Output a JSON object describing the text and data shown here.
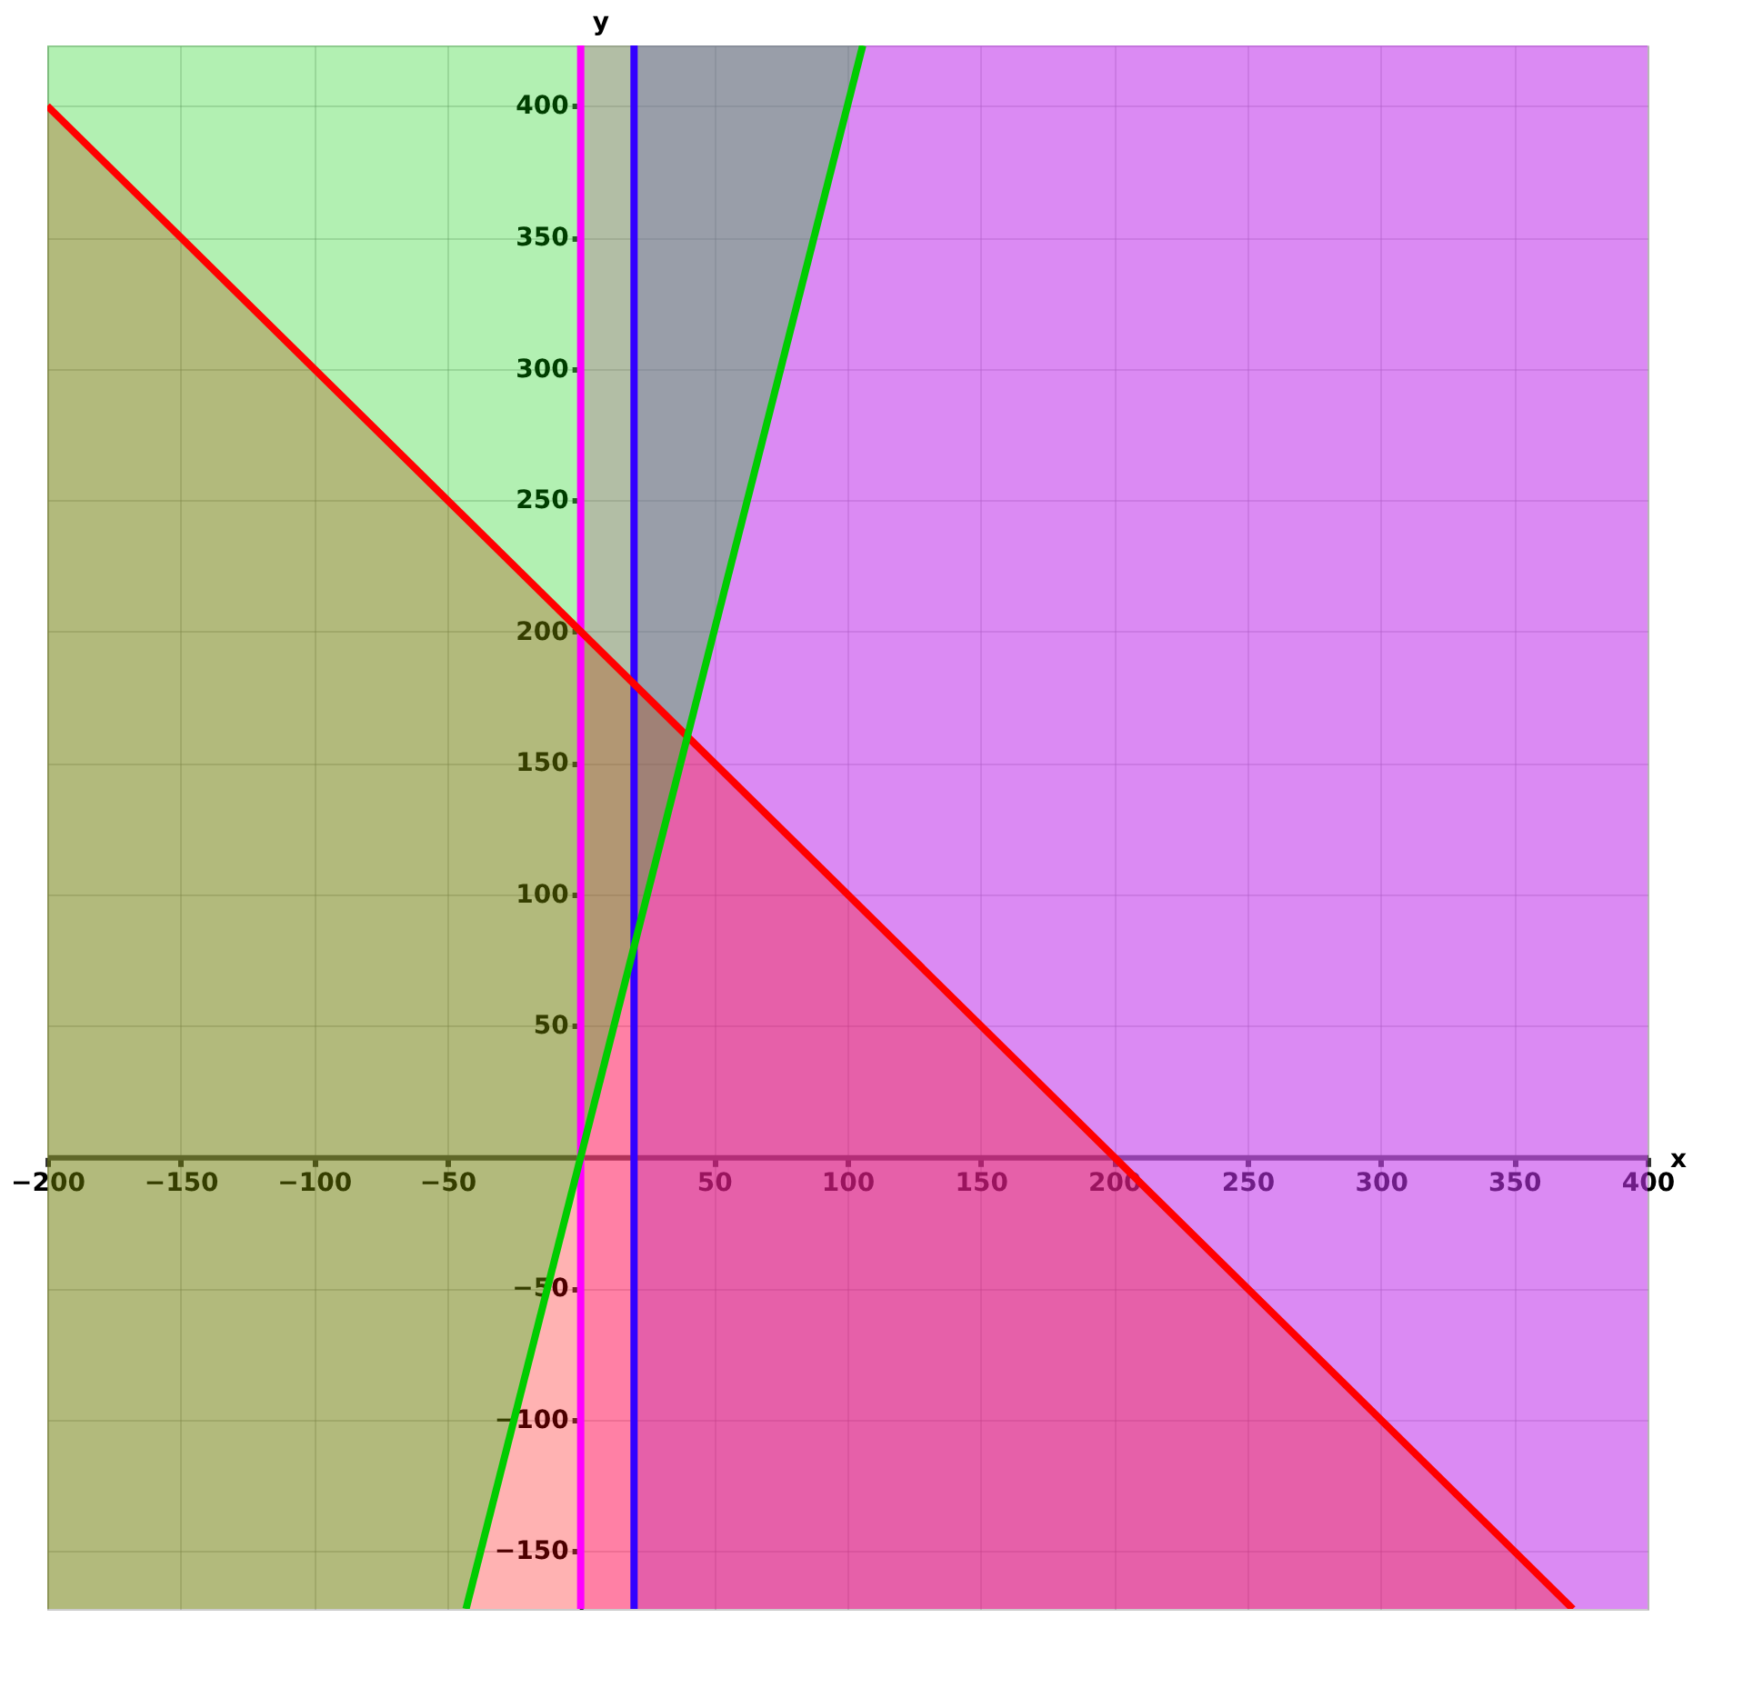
{
  "chart_data": {
    "type": "line",
    "xlabel": "x",
    "ylabel": "y",
    "xlim": [
      -200,
      400
    ],
    "ylim": [
      -172,
      423
    ],
    "xticks": [
      -200,
      -150,
      -100,
      -50,
      50,
      100,
      150,
      200,
      250,
      300,
      350,
      400
    ],
    "yticks": [
      -150,
      -100,
      -50,
      50,
      100,
      150,
      200,
      250,
      300,
      350,
      400
    ],
    "grid": true,
    "series": [
      {
        "color": "#ff0000",
        "x": [
          -200,
          372
        ],
        "values": [
          400,
          -172
        ],
        "lower": [
          -172,
          -172
        ],
        "upper": [
          400,
          -172
        ]
      },
      {
        "color": "#00cc00",
        "x": [
          -200,
          -43,
          105.75
        ],
        "values": [
          null,
          -172,
          423
        ],
        "lower": [
          -172,
          -172,
          423
        ],
        "upper": [
          423,
          423,
          423
        ]
      }
    ],
    "bands": [
      {
        "axis": "x",
        "from": 0,
        "to": 400,
        "color": "#ff33cc"
      },
      {
        "axis": "x",
        "from": 20,
        "to": 400,
        "color": "#9933ff"
      }
    ],
    "ref_lines": [
      {
        "axis": "x",
        "value": 0,
        "color": "#ff00ff"
      },
      {
        "axis": "x",
        "value": 20,
        "color": "#3300ff"
      }
    ]
  }
}
